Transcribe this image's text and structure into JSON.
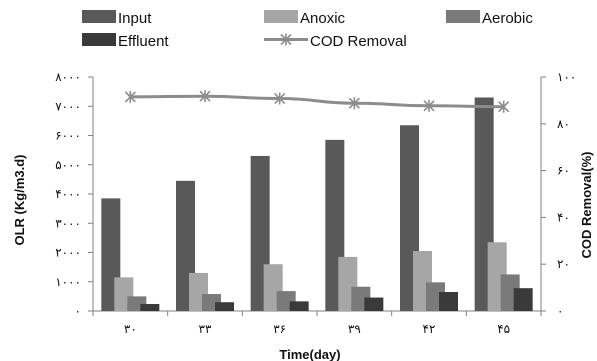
{
  "chart_data": {
    "type": "bar",
    "categories": [
      "۳۰",
      "۳۳",
      "۳۶",
      "۳۹",
      "۴۲",
      "۴۵"
    ],
    "series": [
      {
        "name": "Input",
        "type": "bar",
        "axis": "left",
        "color": "#595959",
        "values": [
          3850,
          4450,
          5300,
          5850,
          6350,
          7300
        ]
      },
      {
        "name": "Anoxic",
        "type": "bar",
        "axis": "left",
        "color": "#a6a6a6",
        "values": [
          1150,
          1300,
          1600,
          1850,
          2050,
          2350
        ]
      },
      {
        "name": "Aerobic",
        "type": "bar",
        "axis": "left",
        "color": "#7a7a7a",
        "values": [
          500,
          580,
          680,
          830,
          980,
          1250
        ]
      },
      {
        "name": "Effluent",
        "type": "bar",
        "axis": "left",
        "color": "#3a3a3a",
        "values": [
          240,
          300,
          330,
          460,
          650,
          780
        ]
      },
      {
        "name": "COD Removal",
        "type": "line",
        "axis": "right",
        "color": "#8c8c8c",
        "values": [
          91.5,
          91.8,
          90.8,
          88.8,
          87.7,
          87.3
        ]
      }
    ],
    "xlabel": "Time(day)",
    "ylabel": "OLR (Kg/m3.d)",
    "y2label": "COD Removal(%)",
    "ylim": [
      0,
      8000
    ],
    "y2lim": [
      0,
      100
    ],
    "yticks": [
      0,
      1000,
      2000,
      3000,
      4000,
      5000,
      6000,
      7000,
      8000
    ],
    "yticklabels": [
      "۰",
      "۱۰۰۰",
      "۲۰۰۰",
      "۳۰۰۰",
      "۴۰۰۰",
      "۵۰۰۰",
      "۶۰۰۰",
      "۷۰۰۰",
      "۸۰۰۰"
    ],
    "y2ticks": [
      0,
      20,
      40,
      60,
      80,
      100
    ],
    "y2ticklabels": [
      "۰",
      "۲۰",
      "۴۰",
      "۶۰",
      "۸۰",
      "۱۰۰"
    ],
    "legend_position": "top",
    "grid": false
  },
  "colors": {
    "axis": "#808080",
    "text": "#111111"
  }
}
